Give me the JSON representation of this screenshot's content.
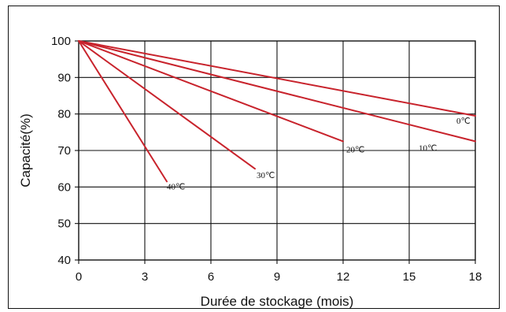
{
  "chart_data": {
    "type": "line",
    "title": "",
    "xlabel": "Durée de stockage (mois)",
    "ylabel": "Capacité(%)",
    "xlim": [
      0,
      18
    ],
    "ylim": [
      40,
      100
    ],
    "xticks": [
      0,
      3,
      6,
      9,
      12,
      15,
      18
    ],
    "yticks": [
      40,
      50,
      60,
      70,
      80,
      90,
      100
    ],
    "grid": true,
    "line_color": "#c8232c",
    "series": [
      {
        "name": "0℃",
        "x": [
          0,
          18
        ],
        "y": [
          100,
          79.5
        ]
      },
      {
        "name": "10℃",
        "x": [
          0,
          18
        ],
        "y": [
          100,
          72.5
        ]
      },
      {
        "name": "20℃",
        "x": [
          0,
          12
        ],
        "y": [
          100,
          72.5
        ]
      },
      {
        "name": "30℃",
        "x": [
          0,
          8
        ],
        "y": [
          100,
          65
        ]
      },
      {
        "name": "40℃",
        "x": [
          0,
          4
        ],
        "y": [
          100,
          61.5
        ]
      }
    ]
  }
}
